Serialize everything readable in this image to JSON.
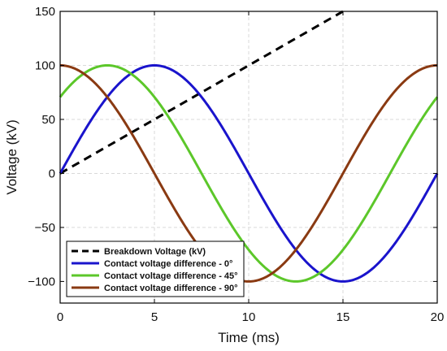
{
  "chart_data": {
    "type": "line",
    "title": "",
    "xlabel": "Time (ms)",
    "ylabel": "Voltage (kV)",
    "xlim": [
      0,
      20
    ],
    "ylim": [
      -120,
      150
    ],
    "xticks": [
      0,
      5,
      10,
      15,
      20
    ],
    "yticks": [
      -100,
      -50,
      0,
      50,
      100,
      150
    ],
    "ytick_labels": [
      "−100",
      "−50",
      "0",
      "50",
      "100",
      "150"
    ],
    "xtick_labels": [
      "0",
      "5",
      "10",
      "15",
      "20"
    ],
    "grid": true,
    "legend_position": "bottom-left",
    "series": [
      {
        "name": "Breakdown Voltage (kV)",
        "color": "#000000",
        "dash": true,
        "x": [
          0,
          15
        ],
        "y": [
          0,
          150
        ]
      },
      {
        "name": "Contact voltage difference - 0°",
        "color": "#1a14cc",
        "function": "sine",
        "amplitude": 100,
        "frequency_hz": 50,
        "phase_deg": 0
      },
      {
        "name": "Contact voltage difference - 45°",
        "color": "#5cc72a",
        "function": "sine",
        "amplitude": 100,
        "frequency_hz": 50,
        "phase_deg": 45
      },
      {
        "name": "Contact voltage difference - 90°",
        "color": "#8a3a12",
        "function": "sine",
        "amplitude": 100,
        "frequency_hz": 50,
        "phase_deg": 90
      }
    ]
  }
}
